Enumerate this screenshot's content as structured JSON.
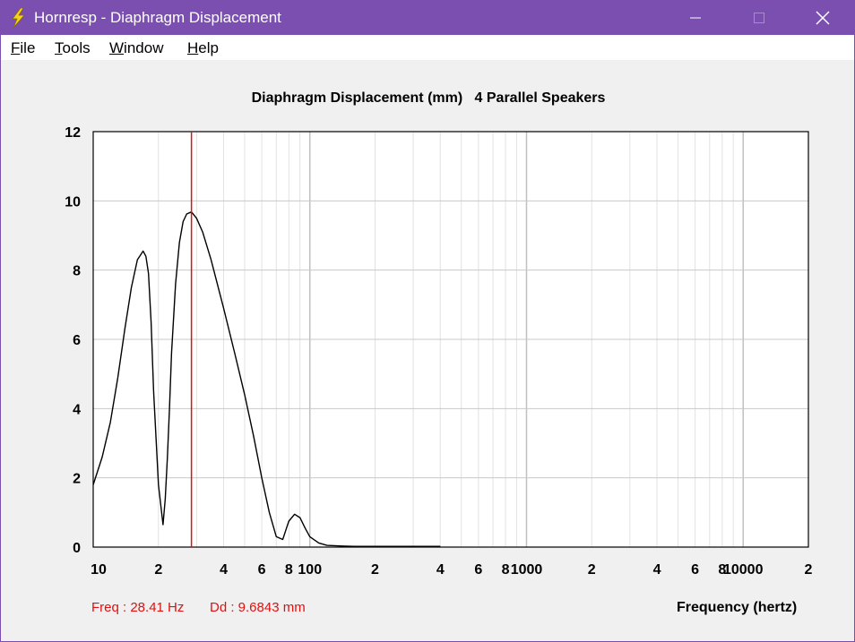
{
  "window": {
    "title": "Hornresp - Diaphragm Displacement",
    "icon": "lightning-bolt-icon",
    "controls": [
      "minimize-icon",
      "maximize-icon",
      "close-icon"
    ],
    "title_bar_color": "#7b4fb0"
  },
  "menu": {
    "items": [
      {
        "label": "File"
      },
      {
        "label": "Tools"
      },
      {
        "label": "Window"
      },
      {
        "label": "Help"
      }
    ]
  },
  "readout": {
    "freq": "Freq : 28.41 Hz",
    "dd": "Dd : 9.6843 mm"
  },
  "chart_data": {
    "type": "line",
    "title": "Diaphragm Displacement (mm)   4 Parallel Speakers",
    "xlabel": "Frequency (hertz)",
    "ylabel": "",
    "x_scale": "log",
    "xlim": [
      10,
      20000
    ],
    "ylim": [
      0,
      12
    ],
    "yticks": [
      0,
      2,
      4,
      6,
      8,
      10,
      12
    ],
    "xtick_labels": [
      {
        "x": 10,
        "label": "10"
      },
      {
        "x": 20,
        "label": "2"
      },
      {
        "x": 40,
        "label": "4"
      },
      {
        "x": 60,
        "label": "6"
      },
      {
        "x": 80,
        "label": "8"
      },
      {
        "x": 100,
        "label": "100"
      },
      {
        "x": 200,
        "label": "2"
      },
      {
        "x": 400,
        "label": "4"
      },
      {
        "x": 600,
        "label": "6"
      },
      {
        "x": 800,
        "label": "8"
      },
      {
        "x": 1000,
        "label": "1000"
      },
      {
        "x": 2000,
        "label": "2"
      },
      {
        "x": 4000,
        "label": "4"
      },
      {
        "x": 6000,
        "label": "6"
      },
      {
        "x": 8000,
        "label": "8"
      },
      {
        "x": 10000,
        "label": "10000"
      },
      {
        "x": 20000,
        "label": "2"
      }
    ],
    "grid": true,
    "cursor_x": 28.41,
    "cursor_color": "#e01010",
    "line_color": "#000000",
    "series": [
      {
        "x": [
          10,
          11,
          12,
          13,
          14,
          15,
          16,
          17,
          17.5,
          18,
          18.5,
          19,
          20,
          21,
          21.5,
          22,
          22.5,
          23,
          24,
          25,
          26,
          27,
          28.41,
          30,
          32,
          35,
          40,
          45,
          50,
          55,
          60,
          65,
          70,
          75,
          78,
          80,
          85,
          90,
          95,
          100,
          110,
          120,
          140,
          160,
          200,
          300,
          400
        ],
        "y": [
          1.8,
          2.6,
          3.6,
          4.9,
          6.3,
          7.5,
          8.3,
          8.55,
          8.4,
          7.9,
          6.5,
          4.5,
          1.8,
          0.65,
          1.4,
          2.6,
          4.0,
          5.6,
          7.6,
          8.8,
          9.4,
          9.62,
          9.68,
          9.5,
          9.1,
          8.3,
          6.9,
          5.6,
          4.4,
          3.2,
          2.0,
          1.0,
          0.3,
          0.22,
          0.55,
          0.75,
          0.95,
          0.85,
          0.55,
          0.3,
          0.12,
          0.05,
          0.03,
          0.02,
          0.02,
          0.02,
          0.02
        ]
      }
    ]
  }
}
